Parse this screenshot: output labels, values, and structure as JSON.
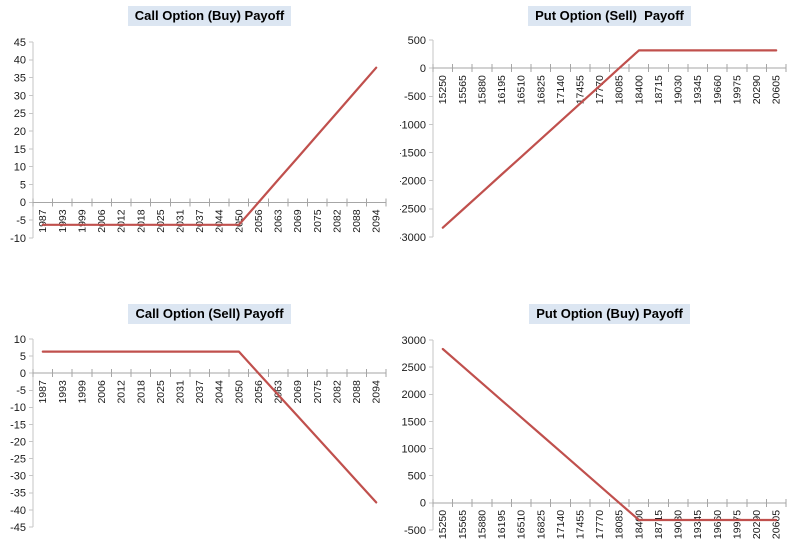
{
  "page": {
    "background": "#FFFFFF"
  },
  "styles": {
    "series_color": "#C0504D",
    "title_bg": "#DCE6F2",
    "title_color": "#000000",
    "axis_line_color": "#C6C6C6",
    "zero_line_color": "#A6A6A6",
    "tick_label_color": "#1A1A1A"
  },
  "chart_data": [
    {
      "type": "line",
      "title": "Call Option (Buy) Payoff",
      "xlabel": "",
      "ylabel": "",
      "legend": "none",
      "grid": false,
      "x_label_rotation": -90,
      "categories": [
        "1987",
        "1993",
        "1999",
        "2006",
        "2012",
        "2018",
        "2025",
        "2031",
        "2037",
        "2044",
        "2050",
        "2056",
        "2063",
        "2069",
        "2075",
        "2082",
        "2088",
        "2094"
      ],
      "values": [
        -6.3,
        -6.3,
        -6.3,
        -6.3,
        -6.3,
        -6.3,
        -6.3,
        -6.3,
        -6.3,
        -6.3,
        -6.3,
        0,
        6.3,
        12.6,
        18.9,
        25.2,
        31.5,
        37.8
      ],
      "ylim": [
        -10,
        45
      ],
      "yticks": [
        45,
        40,
        35,
        30,
        25,
        20,
        15,
        10,
        5,
        0,
        -5,
        -10
      ],
      "annotation": "strike 2050, premium 6.3"
    },
    {
      "type": "line",
      "title": "Put Option (Sell)  Payoff",
      "xlabel": "",
      "ylabel": "",
      "legend": "none",
      "grid": false,
      "x_label_rotation": -90,
      "categories": [
        "15250",
        "15565",
        "15880",
        "16195",
        "16510",
        "16825",
        "17140",
        "17455",
        "17770",
        "18085",
        "18400",
        "18715",
        "19030",
        "19345",
        "19660",
        "19975",
        "20290",
        "20605"
      ],
      "values": [
        -2835,
        -2520,
        -2205,
        -1890,
        -1575,
        -1260,
        -945,
        -630,
        -315,
        0,
        315,
        315,
        315,
        315,
        315,
        315,
        315,
        315
      ],
      "ylim": [
        -3000,
        500
      ],
      "yticks": [
        500,
        0,
        -500,
        -1000,
        -1500,
        -2000,
        -2500,
        -3000
      ],
      "annotation": "strike 18400, premium 315"
    },
    {
      "type": "line",
      "title": "Call Option (Sell) Payoff",
      "xlabel": "",
      "ylabel": "",
      "legend": "none",
      "grid": false,
      "x_label_rotation": -90,
      "categories": [
        "1987",
        "1993",
        "1999",
        "2006",
        "2012",
        "2018",
        "2025",
        "2031",
        "2037",
        "2044",
        "2050",
        "2056",
        "2063",
        "2069",
        "2075",
        "2082",
        "2088",
        "2094"
      ],
      "values": [
        6.3,
        6.3,
        6.3,
        6.3,
        6.3,
        6.3,
        6.3,
        6.3,
        6.3,
        6.3,
        6.3,
        0,
        -6.3,
        -12.6,
        -18.9,
        -25.2,
        -31.5,
        -37.8
      ],
      "ylim": [
        -45,
        10
      ],
      "yticks": [
        10,
        5,
        0,
        -5,
        -10,
        -15,
        -20,
        -25,
        -30,
        -35,
        -40,
        -45
      ],
      "annotation": "strike 2050, premium 6.3"
    },
    {
      "type": "line",
      "title": "Put Option (Buy) Payoff",
      "xlabel": "",
      "ylabel": "",
      "legend": "none",
      "grid": false,
      "x_label_rotation": -90,
      "categories": [
        "15250",
        "15565",
        "15880",
        "16195",
        "16510",
        "16825",
        "17140",
        "17455",
        "17770",
        "18085",
        "18400",
        "18715",
        "19030",
        "19345",
        "19660",
        "19975",
        "20290",
        "20605"
      ],
      "values": [
        2835,
        2520,
        2205,
        1890,
        1575,
        1260,
        945,
        630,
        315,
        0,
        -315,
        -315,
        -315,
        -315,
        -315,
        -315,
        -315,
        -315
      ],
      "ylim": [
        -500,
        3000
      ],
      "yticks": [
        3000,
        2500,
        2000,
        1500,
        1000,
        500,
        0,
        -500
      ],
      "annotation": "strike 18400, premium 315"
    }
  ]
}
